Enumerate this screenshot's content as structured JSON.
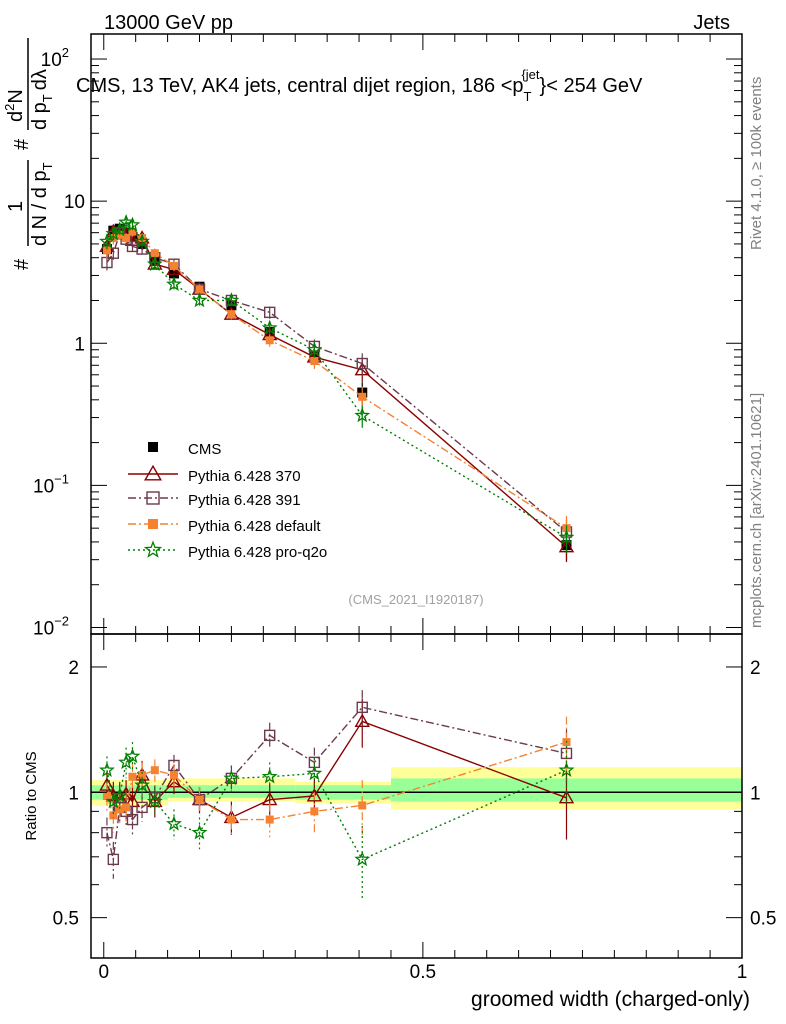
{
  "header": {
    "left": "13000 GeV pp",
    "right": "Jets",
    "side_top": "Rivet 4.1.0, ≥ 100k events",
    "side_bottom": "mcplots.cern.ch [arXiv:2401.10621]"
  },
  "chart_data": [
    {
      "type": "line",
      "title": "CMS, 13 TeV, AK4 jets, central dijet region, 186 <p",
      "title_sub": "T",
      "title_sup": "{jet",
      "title_tail": "}< 254 GeV",
      "ylabel": "1/N dN/dp_T d^2N/dp_T dλ",
      "ylabel_parts": [
        "#",
        "1",
        "d N / d p",
        "T",
        "#",
        "d",
        "2",
        "N",
        "d p",
        "T",
        "dλ"
      ],
      "yscale": "log",
      "ylim": [
        0.009,
        150
      ],
      "xlim": [
        -0.02,
        1.0
      ],
      "yticks": [
        {
          "v": 0.01,
          "label": "10",
          "sup": "−2"
        },
        {
          "v": 0.1,
          "label": "10",
          "sup": "−1"
        },
        {
          "v": 1,
          "label": "1",
          "sup": ""
        },
        {
          "v": 10,
          "label": "10",
          "sup": ""
        },
        {
          "v": 100,
          "label": "10",
          "sup": "2"
        }
      ],
      "watermark": "(CMS_2021_I1920187)",
      "legend_position": "bottom-left",
      "x": [
        0.005,
        0.015,
        0.025,
        0.035,
        0.045,
        0.06,
        0.08,
        0.11,
        0.15,
        0.2,
        0.26,
        0.33,
        0.405,
        0.725
      ],
      "series": [
        {
          "name": "CMS",
          "color": "#000000",
          "marker": "square",
          "dash": "none",
          "values": [
            4.6,
            6.2,
            6.4,
            6.0,
            5.6,
            5.0,
            3.8,
            3.1,
            2.5,
            1.85,
            1.2,
            0.82,
            0.45,
            0.038
          ]
        },
        {
          "name": "Pythia 6.428 370",
          "color": "#8b0000",
          "marker": "triangle",
          "dash": "none",
          "values": [
            4.8,
            6.1,
            6.2,
            5.9,
            5.3,
            5.5,
            3.6,
            3.3,
            2.4,
            1.6,
            1.15,
            0.8,
            0.65,
            0.037
          ]
        },
        {
          "name": "Pythia 6.428 391",
          "color": "#6b3a4b",
          "marker": "open-square",
          "dash": "dashdot",
          "values": [
            3.7,
            4.3,
            5.9,
            5.4,
            4.8,
            4.6,
            4.0,
            3.6,
            2.4,
            2.0,
            1.65,
            0.95,
            0.72,
            0.047
          ]
        },
        {
          "name": "Pythia 6.428 default",
          "color": "#f58231",
          "marker": "filled-square",
          "dash": "dashdot",
          "values": [
            4.5,
            5.5,
            5.8,
            5.5,
            6.1,
            5.5,
            4.3,
            3.5,
            2.4,
            1.6,
            1.05,
            0.75,
            0.42,
            0.05
          ]
        },
        {
          "name": "Pythia 6.428 pro-q2o",
          "color": "#008000",
          "marker": "star",
          "dash": "dot",
          "values": [
            5.2,
            5.9,
            6.3,
            7.1,
            6.8,
            5.2,
            3.6,
            2.6,
            2.0,
            2.0,
            1.28,
            0.9,
            0.31,
            0.043
          ]
        }
      ],
      "errors_rel": [
        0.12,
        0.1,
        0.08,
        0.08,
        0.08,
        0.08,
        0.08,
        0.08,
        0.08,
        0.08,
        0.1,
        0.12,
        0.18,
        0.22
      ]
    },
    {
      "type": "line",
      "ylabel": "Ratio to CMS",
      "xlabel": "groomed width (charged-only)",
      "yscale": "log",
      "ylim": [
        0.4,
        2.4
      ],
      "yticks": [
        {
          "v": 0.5,
          "label": "0.5"
        },
        {
          "v": 1,
          "label": "1"
        },
        {
          "v": 2,
          "label": "2"
        }
      ],
      "xticks": [
        {
          "v": 0,
          "label": "0"
        },
        {
          "v": 0.5,
          "label": "0.5"
        },
        {
          "v": 1,
          "label": "1"
        }
      ],
      "bands": [
        {
          "x0": -0.02,
          "x1": 0.1,
          "inner": [
            0.96,
            1.04
          ],
          "outer": [
            0.93,
            1.07
          ]
        },
        {
          "x0": 0.1,
          "x1": 0.3,
          "inner": [
            0.97,
            1.04
          ],
          "outer": [
            0.95,
            1.08
          ]
        },
        {
          "x0": 0.3,
          "x1": 0.45,
          "inner": [
            0.96,
            1.04
          ],
          "outer": [
            0.94,
            1.06
          ]
        },
        {
          "x0": 0.45,
          "x1": 1.0,
          "inner": [
            0.95,
            1.08
          ],
          "outer": [
            0.91,
            1.15
          ]
        }
      ],
      "x": [
        0.005,
        0.015,
        0.025,
        0.035,
        0.045,
        0.06,
        0.08,
        0.11,
        0.15,
        0.2,
        0.26,
        0.33,
        0.405,
        0.725
      ],
      "series": [
        {
          "name": "Pythia 6.428 370",
          "color": "#8b0000",
          "marker": "triangle",
          "dash": "none",
          "values": [
            1.04,
            0.98,
            0.97,
            0.99,
            0.95,
            1.1,
            0.95,
            1.06,
            0.96,
            0.87,
            0.96,
            0.98,
            1.48,
            0.97
          ],
          "err": [
            0.08,
            0.08,
            0.08,
            0.08,
            0.08,
            0.09,
            0.08,
            0.07,
            0.07,
            0.08,
            0.09,
            0.1,
            0.2,
            0.2
          ]
        },
        {
          "name": "Pythia 6.428 391",
          "color": "#6b3a4b",
          "marker": "open-square",
          "dash": "dashdot",
          "values": [
            0.8,
            0.69,
            0.92,
            0.9,
            0.86,
            0.92,
            0.97,
            1.16,
            0.96,
            1.08,
            1.37,
            1.18,
            1.6,
            1.24
          ],
          "err": [
            0.07,
            0.07,
            0.08,
            0.08,
            0.07,
            0.07,
            0.07,
            0.07,
            0.07,
            0.08,
            0.1,
            0.1,
            0.16,
            0.18
          ]
        },
        {
          "name": "Pythia 6.428 default",
          "color": "#f58231",
          "marker": "filled-square",
          "dash": "dashdot",
          "values": [
            0.98,
            0.88,
            0.91,
            0.92,
            1.09,
            1.1,
            1.13,
            1.1,
            0.96,
            0.86,
            0.86,
            0.9,
            0.93,
            1.32
          ],
          "err": [
            0.08,
            0.08,
            0.08,
            0.08,
            0.08,
            0.08,
            0.07,
            0.07,
            0.07,
            0.07,
            0.08,
            0.1,
            0.14,
            0.2
          ]
        },
        {
          "name": "Pythia 6.428 pro-q2o",
          "color": "#008000",
          "marker": "star",
          "dash": "dot",
          "values": [
            1.13,
            0.95,
            0.98,
            1.18,
            1.22,
            1.04,
            0.95,
            0.84,
            0.8,
            1.08,
            1.09,
            1.11,
            0.69,
            1.13
          ],
          "err": [
            0.09,
            0.08,
            0.08,
            0.1,
            0.1,
            0.08,
            0.08,
            0.07,
            0.07,
            0.08,
            0.09,
            0.1,
            0.14,
            0.2
          ]
        }
      ]
    }
  ]
}
